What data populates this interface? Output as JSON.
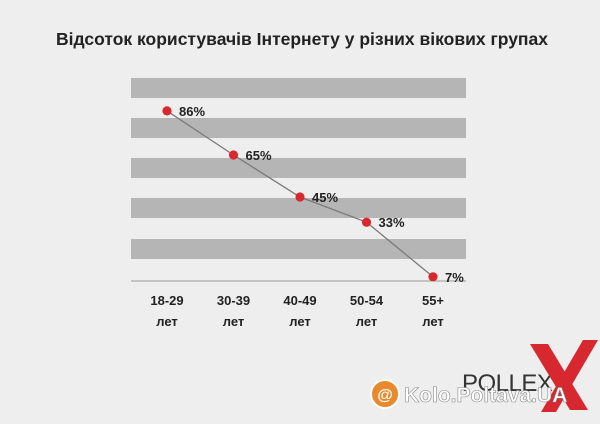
{
  "chart_data": {
    "type": "line",
    "title": "Відсоток користувачів Інтернету у різних вікових групах",
    "categories": [
      "18-29 лет",
      "30-39 лет",
      "40-49 лет",
      "50-54 лет",
      "55+ лет"
    ],
    "tick_labels": [
      [
        "18-29",
        "лет"
      ],
      [
        "30-39",
        "лет"
      ],
      [
        "40-49",
        "лет"
      ],
      [
        "50-54",
        "лет"
      ],
      [
        "55+",
        "лет"
      ]
    ],
    "values": [
      86,
      65,
      45,
      33,
      7
    ],
    "data_labels": [
      "86%",
      "65%",
      "45%",
      "33%",
      "7%"
    ],
    "ylim": [
      0,
      100
    ],
    "grid": "alternating horizontal bands",
    "colors": {
      "band": "#b5b5b5",
      "line": "#7a7a7a",
      "marker": "#d7282f",
      "background": "#eeeeee"
    }
  },
  "branding": {
    "logo": "POLLEX",
    "watermark": "Kolo.Poltava.UA",
    "watermark_at": "@"
  }
}
